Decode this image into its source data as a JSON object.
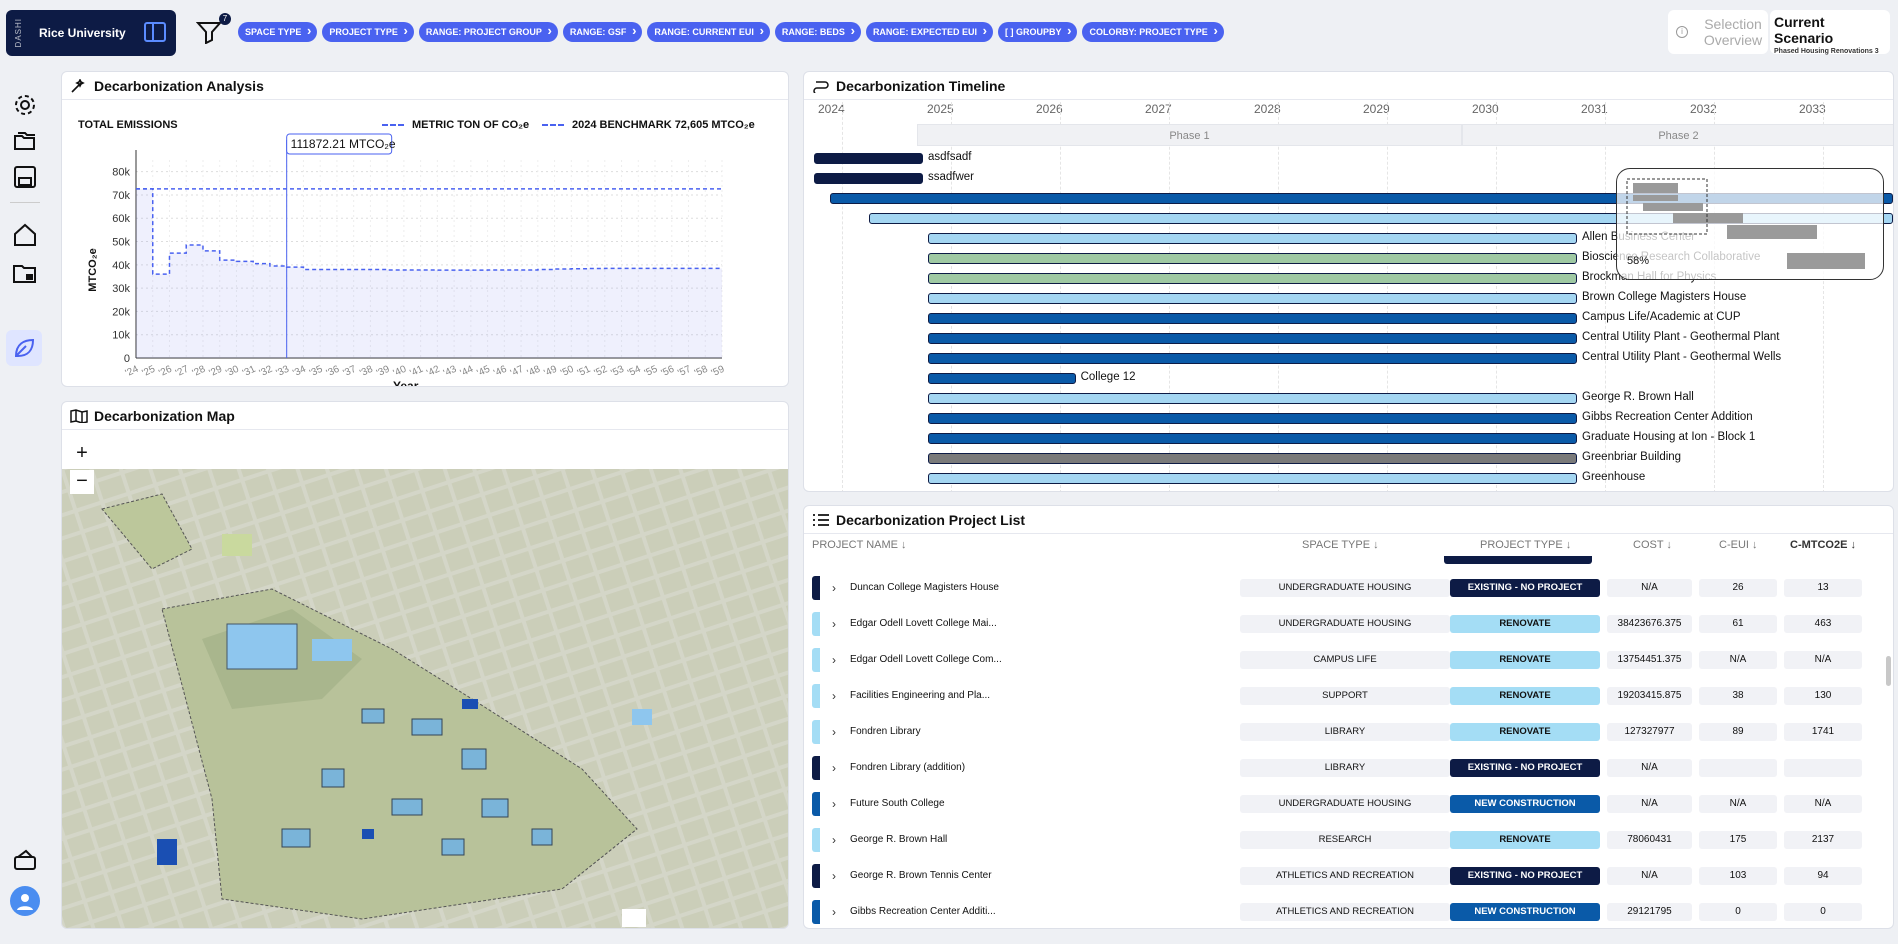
{
  "top": {
    "brand_vertical": "DASHI",
    "university": "Rice University",
    "filter_count": "7",
    "chips": [
      "SPACE TYPE",
      "PROJECT TYPE",
      "RANGE: PROJECT GROUP",
      "RANGE: GSF",
      "RANGE: CURRENT EUI",
      "RANGE: BEDS",
      "RANGE: EXPECTED EUI",
      "[ ] GROUPBY",
      "COLORBY: PROJECT TYPE"
    ],
    "selection_label": "Selection Overview",
    "scenario_title": "Current Scenario",
    "scenario_sub": "Phased Housing Renovations 3"
  },
  "analysis": {
    "title": "Decarbonization Analysis",
    "chart_title": "TOTAL EMISSIONS",
    "legend_metric": "METRIC TON OF CO₂e",
    "legend_bench": "2024 BENCHMARK 72,605 MTCO₂e",
    "tooltip": "111872.21 MTCO₂e"
  },
  "chart_data": {
    "type": "area",
    "title": "TOTAL EMISSIONS",
    "xlabel": "Year",
    "ylabel": "MTCO₂e",
    "x": [
      "'24",
      "'25",
      "'26",
      "'27",
      "'28",
      "'29",
      "'30",
      "'31",
      "'32",
      "'33",
      "'34",
      "'35",
      "'36",
      "'37",
      "'38",
      "'39",
      "'40",
      "'41",
      "'42",
      "'43",
      "'44",
      "'45",
      "'46",
      "'47",
      "'48",
      "'49",
      "'50",
      "'51",
      "'52",
      "'53",
      "'54",
      "'55",
      "'56",
      "'57",
      "'58",
      "'59"
    ],
    "series": [
      {
        "name": "METRIC TON OF CO₂e",
        "values": [
          72600,
          36000,
          45000,
          48500,
          46000,
          42000,
          41500,
          40500,
          39500,
          39000,
          38000,
          38000,
          38000,
          38000,
          38000,
          37800,
          37800,
          37800,
          37700,
          37700,
          37700,
          37800,
          37800,
          37800,
          38000,
          38200,
          38300,
          38400,
          38500,
          38500,
          38500,
          38500,
          38500,
          38500,
          38500,
          38500
        ]
      }
    ],
    "benchmark": 72605,
    "ylim": [
      0,
      85000
    ],
    "yticks": [
      "0",
      "10k",
      "20k",
      "30k",
      "40k",
      "50k",
      "60k",
      "70k",
      "80k"
    ],
    "grid": true
  },
  "map": {
    "title": "Decarbonization Map",
    "zoom_in": "+",
    "zoom_out": "−"
  },
  "timeline": {
    "title": "Decarbonization Timeline",
    "years": [
      "2024",
      "2025",
      "2026",
      "2027",
      "2028",
      "2029",
      "2030",
      "2031",
      "2032",
      "2033"
    ],
    "phase1": "Phase 1",
    "phase2": "Phase 2",
    "overview_pct": "58%",
    "bars": [
      {
        "label": "asdfsadf",
        "start": 0,
        "end": 1,
        "color": "#0d1b45"
      },
      {
        "label": "ssadfwer",
        "start": 0,
        "end": 1,
        "color": "#0d1b45"
      },
      {
        "label": "",
        "start": 0.15,
        "end": 9.9,
        "color": "#0a5aa8"
      },
      {
        "label": "",
        "start": 0.5,
        "end": 9.9,
        "color": "#a4d6f2"
      },
      {
        "label": "Allen Business Center",
        "start": 1.05,
        "end": 7.0,
        "color": "#a4d6f2"
      },
      {
        "label": "Bioscience Research Collaborative",
        "start": 1.05,
        "end": 7.0,
        "color": "#9fc9a3"
      },
      {
        "label": "Brockman Hall for Physics",
        "start": 1.05,
        "end": 7.0,
        "color": "#9fc9a3"
      },
      {
        "label": "Brown College Magisters House",
        "start": 1.05,
        "end": 7.0,
        "color": "#a4d6f2"
      },
      {
        "label": "Campus Life/Academic at CUP",
        "start": 1.05,
        "end": 7.0,
        "color": "#0a5aa8"
      },
      {
        "label": "Central Utility Plant - Geothermal Plant",
        "start": 1.05,
        "end": 7.0,
        "color": "#0a5aa8"
      },
      {
        "label": "Central Utility Plant - Geothermal Wells",
        "start": 1.05,
        "end": 7.0,
        "color": "#0a5aa8"
      },
      {
        "label": "College 12",
        "start": 1.05,
        "end": 2.4,
        "color": "#0a5aa8"
      },
      {
        "label": "George R. Brown Hall",
        "start": 1.05,
        "end": 7.0,
        "color": "#a4d6f2"
      },
      {
        "label": "Gibbs Recreation Center Addition",
        "start": 1.05,
        "end": 7.0,
        "color": "#0a5aa8"
      },
      {
        "label": "Graduate Housing at Ion - Block 1",
        "start": 1.05,
        "end": 7.0,
        "color": "#0a5aa8"
      },
      {
        "label": "Greenbriar Building",
        "start": 1.05,
        "end": 7.0,
        "color": "#7a7a7a"
      },
      {
        "label": "Greenhouse",
        "start": 1.05,
        "end": 7.0,
        "color": "#a4d6f2"
      }
    ]
  },
  "list": {
    "title": "Decarbonization Project List",
    "headers": {
      "name": "PROJECT NAME ↓",
      "space": "SPACE TYPE ↓",
      "ptype": "PROJECT TYPE ↓",
      "cost": "COST ↓",
      "ceui": "C-EUI ↓",
      "cmt": "C-MTCO2E ↓"
    },
    "rows": [
      {
        "name": "Duncan College Magisters House",
        "space": "UNDERGRADUATE HOUSING",
        "ptype": "EXISTING - NO PROJECT",
        "cost": "N/A",
        "ceui": "26",
        "cmt": "13",
        "color": "#0d1b45",
        "tc": "#fff"
      },
      {
        "name": "Edgar Odell Lovett College Mai...",
        "space": "UNDERGRADUATE HOUSING",
        "ptype": "RENOVATE",
        "cost": "38423676.375",
        "ceui": "61",
        "cmt": "463",
        "color": "#a4ddf5",
        "tc": "#111"
      },
      {
        "name": "Edgar Odell Lovett College Com...",
        "space": "CAMPUS LIFE",
        "ptype": "RENOVATE",
        "cost": "13754451.375",
        "ceui": "N/A",
        "cmt": "N/A",
        "color": "#a4ddf5",
        "tc": "#111"
      },
      {
        "name": "Facilities Engineering and Pla...",
        "space": "SUPPORT",
        "ptype": "RENOVATE",
        "cost": "19203415.875",
        "ceui": "38",
        "cmt": "130",
        "color": "#a4ddf5",
        "tc": "#111"
      },
      {
        "name": "Fondren Library",
        "space": "LIBRARY",
        "ptype": "RENOVATE",
        "cost": "127327977",
        "ceui": "89",
        "cmt": "1741",
        "color": "#a4ddf5",
        "tc": "#111"
      },
      {
        "name": "Fondren Library (addition)",
        "space": "LIBRARY",
        "ptype": "EXISTING - NO PROJECT",
        "cost": "N/A",
        "ceui": "",
        "cmt": "",
        "color": "#0d1b45",
        "tc": "#fff"
      },
      {
        "name": "Future South College",
        "space": "UNDERGRADUATE HOUSING",
        "ptype": "NEW CONSTRUCTION",
        "cost": "N/A",
        "ceui": "N/A",
        "cmt": "N/A",
        "color": "#0a5aa8",
        "tc": "#fff"
      },
      {
        "name": "George R. Brown Hall",
        "space": "RESEARCH",
        "ptype": "RENOVATE",
        "cost": "78060431",
        "ceui": "175",
        "cmt": "2137",
        "color": "#a4ddf5",
        "tc": "#111"
      },
      {
        "name": "George R. Brown Tennis Center",
        "space": "ATHLETICS AND RECREATION",
        "ptype": "EXISTING - NO PROJECT",
        "cost": "N/A",
        "ceui": "103",
        "cmt": "94",
        "color": "#0d1b45",
        "tc": "#fff"
      },
      {
        "name": "Gibbs Recreation Center Additi...",
        "space": "ATHLETICS AND RECREATION",
        "ptype": "NEW CONSTRUCTION",
        "cost": "29121795",
        "ceui": "0",
        "cmt": "0",
        "color": "#0a5aa8",
        "tc": "#fff"
      }
    ]
  }
}
